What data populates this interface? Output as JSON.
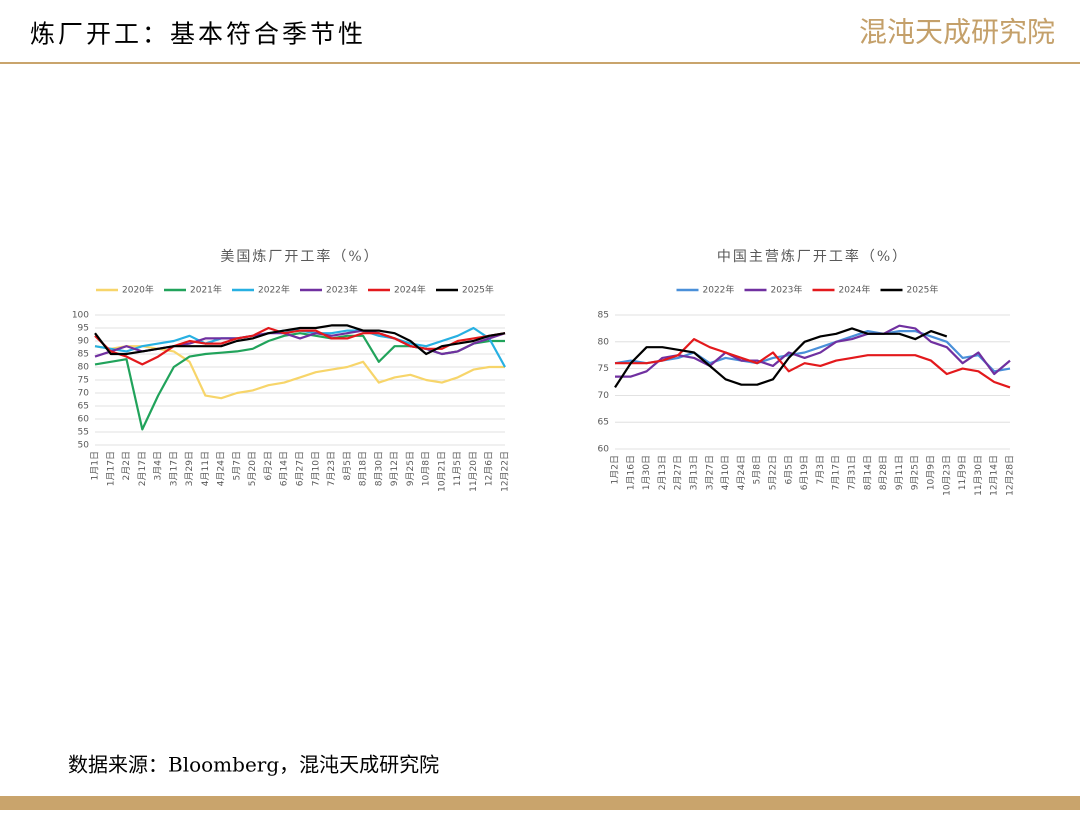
{
  "header": {
    "title": "炼厂开工：基本符合季节性",
    "logo": "混沌天成研究院"
  },
  "source": "数据来源：Bloomberg，混沌天成研究院",
  "chart_data": [
    {
      "type": "line",
      "title": "美国炼厂开工率（%）",
      "categories": [
        "1月1日",
        "1月17日",
        "2月2日",
        "2月17日",
        "3月4日",
        "3月17日",
        "3月29日",
        "4月11日",
        "4月24日",
        "5月7日",
        "5月20日",
        "6月2日",
        "6月14日",
        "6月27日",
        "7月10日",
        "7月23日",
        "8月5日",
        "8月18日",
        "8月30日",
        "9月12日",
        "9月25日",
        "10月8日",
        "10月21日",
        "11月5日",
        "11月20日",
        "12月6日",
        "12月22日"
      ],
      "ylim": [
        50,
        100
      ],
      "yticks": [
        50,
        55,
        60,
        65,
        70,
        75,
        80,
        85,
        90,
        95,
        100
      ],
      "grid": true,
      "legend": "top",
      "series": [
        {
          "name": "2020年",
          "color": "#f7d56a",
          "values": [
            88,
            87,
            88,
            88,
            87,
            86,
            82,
            69,
            68,
            70,
            71,
            73,
            74,
            76,
            78,
            79,
            80,
            82,
            74,
            76,
            77,
            75,
            74,
            76,
            79,
            80,
            80
          ]
        },
        {
          "name": "2021年",
          "color": "#21a35b",
          "values": [
            81,
            82,
            83,
            56,
            69,
            80,
            84,
            85,
            85.5,
            86,
            87,
            90,
            92,
            93,
            92,
            91,
            92,
            92,
            82,
            88,
            88,
            87,
            85,
            86,
            89,
            90,
            90
          ]
        },
        {
          "name": "2022年",
          "color": "#27b0e2",
          "values": [
            88,
            87,
            86,
            88,
            89,
            90,
            92,
            89,
            91,
            91,
            92,
            93,
            94,
            94,
            93,
            93,
            94,
            94,
            92,
            91,
            89,
            88,
            90,
            92,
            95,
            91,
            80
          ]
        },
        {
          "name": "2023年",
          "color": "#7030a0",
          "values": [
            84,
            86,
            88,
            86,
            87,
            88,
            89,
            91,
            91,
            91,
            92,
            93,
            93,
            91,
            93,
            92,
            93,
            94,
            93,
            91,
            88,
            87,
            85,
            86,
            89,
            91,
            93
          ]
        },
        {
          "name": "2024年",
          "color": "#e3191c",
          "values": [
            92,
            86,
            84,
            81,
            84,
            88,
            90,
            89,
            89,
            91,
            92,
            95,
            93,
            94,
            94,
            91,
            91,
            93,
            93,
            91,
            88,
            87,
            87,
            90,
            91,
            92,
            93
          ]
        },
        {
          "name": "2025年",
          "color": "#000000",
          "values": [
            93,
            85,
            85,
            86,
            87,
            88,
            88,
            88,
            88,
            90,
            91,
            93,
            94,
            95,
            95,
            96,
            96,
            94,
            94,
            93,
            90,
            85,
            88,
            89,
            90,
            92,
            93
          ]
        }
      ]
    },
    {
      "type": "line",
      "title": "中国主营炼厂开工率（%）",
      "categories": [
        "1月2日",
        "1月16日",
        "1月30日",
        "2月13日",
        "2月27日",
        "3月13日",
        "3月27日",
        "4月10日",
        "4月24日",
        "5月8日",
        "5月22日",
        "6月5日",
        "6月19日",
        "7月3日",
        "7月17日",
        "7月31日",
        "8月14日",
        "8月28日",
        "9月11日",
        "9月25日",
        "10月9日",
        "10月23日",
        "11月9日",
        "11月30日",
        "12月14日",
        "12月28日"
      ],
      "ylim": [
        60,
        85
      ],
      "yticks": [
        60,
        65,
        70,
        75,
        80,
        85
      ],
      "grid": true,
      "legend": "top",
      "series": [
        {
          "name": "2022年",
          "color": "#4a90d9",
          "values": [
            76,
            76.5,
            76,
            76.5,
            77,
            78,
            76,
            77,
            76.5,
            76,
            77,
            77.5,
            78,
            79,
            80,
            81,
            82,
            81.5,
            82,
            82,
            81,
            80,
            77,
            77.5,
            74.5,
            75
          ]
        },
        {
          "name": "2023年",
          "color": "#7030a0",
          "values": [
            73.5,
            73.5,
            74.5,
            77,
            77.5,
            77,
            75.5,
            78,
            76.5,
            76.5,
            75.5,
            78,
            77,
            78,
            80,
            80.5,
            81.5,
            81.5,
            83,
            82.5,
            80,
            79,
            76,
            78,
            74,
            76.5
          ]
        },
        {
          "name": "2024年",
          "color": "#e3191c",
          "values": [
            76,
            76,
            76,
            76.5,
            77.5,
            80.5,
            79,
            78,
            77,
            76,
            78,
            74.5,
            76,
            75.5,
            76.5,
            77,
            77.5,
            77.5,
            77.5,
            77.5,
            76.5,
            74,
            75,
            74.5,
            72.5,
            71.5
          ]
        },
        {
          "name": "2025年",
          "color": "#000000",
          "values": [
            71.5,
            76,
            79,
            79,
            78.5,
            78,
            75.5,
            73,
            72,
            72,
            73,
            77,
            80,
            81,
            81.5,
            82.5,
            81.5,
            81.5,
            81.5,
            80.5,
            82,
            81,
            null,
            null,
            null,
            null
          ]
        }
      ]
    }
  ]
}
